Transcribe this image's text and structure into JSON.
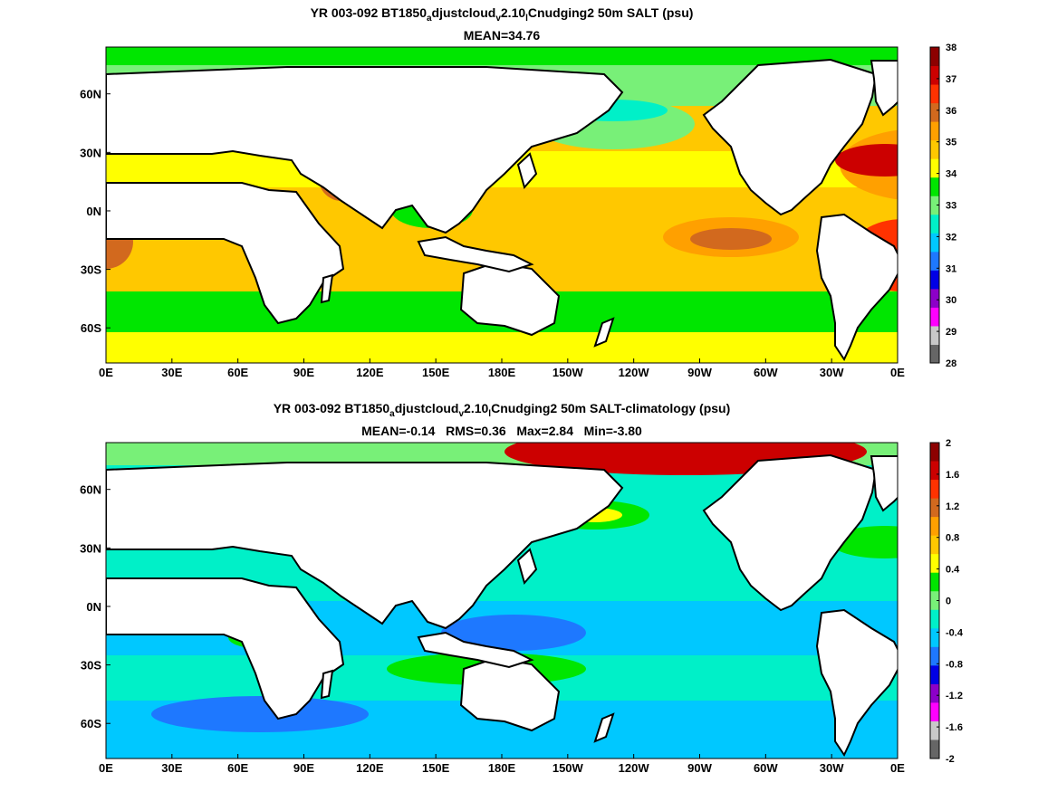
{
  "chart_data": [
    {
      "type": "heatmap",
      "panel": "top",
      "title_parts": [
        "YR 003-092 BT1850",
        "a",
        "djustcloud",
        "v",
        "2.10",
        "l",
        "Cnudging2 50m SALT (psu)"
      ],
      "subtitle": "MEAN=34.76",
      "x_ticks": [
        "0E",
        "30E",
        "60E",
        "90E",
        "120E",
        "150E",
        "180E",
        "150W",
        "120W",
        "90W",
        "60W",
        "30W",
        "0E"
      ],
      "y_ticks": [
        "60N",
        "30N",
        "0N",
        "30S",
        "60S"
      ],
      "colorbar": {
        "levels": [
          "28",
          "29",
          "30",
          "31",
          "32",
          "33",
          "34",
          "35",
          "36",
          "37",
          "38"
        ],
        "colors": [
          "#666666",
          "#c8c8c8",
          "#ff00ff",
          "#8c00c8",
          "#0000e6",
          "#1e78ff",
          "#00c8ff",
          "#00f0c8",
          "#78f078",
          "#00e600",
          "#ffff00",
          "#ffc800",
          "#ffa000",
          "#d2691e",
          "#ff3200",
          "#cc0000",
          "#8c0000"
        ],
        "label_positions": [
          0,
          1,
          2,
          3,
          4,
          5,
          6,
          7,
          8,
          9,
          10
        ]
      }
    },
    {
      "type": "heatmap",
      "panel": "bottom",
      "title_parts": [
        "YR 003-092 BT1850",
        "a",
        "djustcloud",
        "v",
        "2.10",
        "l",
        "Cnudging2 50m SALT-climatology (psu)"
      ],
      "subtitle": "MEAN=-0.14   RMS=0.36   Max=2.84   Min=-3.80",
      "x_ticks": [
        "0E",
        "30E",
        "60E",
        "90E",
        "120E",
        "150E",
        "180E",
        "150W",
        "120W",
        "90W",
        "60W",
        "30W",
        "0E"
      ],
      "y_ticks": [
        "60N",
        "30N",
        "0N",
        "30S",
        "60S"
      ],
      "colorbar": {
        "levels": [
          "2",
          "1.6",
          "1.2",
          "0.8",
          "0.4",
          "0",
          "-0.4",
          "-0.8",
          "-1.2",
          "-1.6",
          "-2"
        ],
        "colors": [
          "#8c0000",
          "#cc0000",
          "#ff3200",
          "#d2691e",
          "#ffa000",
          "#ffc800",
          "#ffff00",
          "#00e600",
          "#78f078",
          "#00f0c8",
          "#00c8ff",
          "#1e78ff",
          "#0000e6",
          "#8c00c8",
          "#ff00ff",
          "#c8c8c8",
          "#666666"
        ]
      }
    }
  ]
}
